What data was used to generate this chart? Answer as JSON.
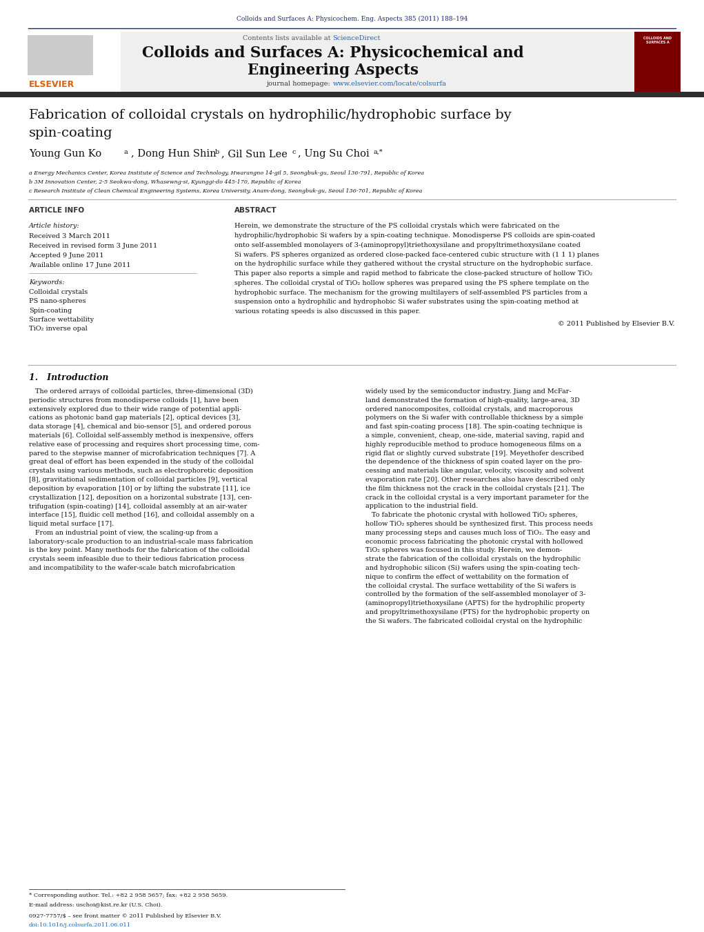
{
  "journal_ref": "Colloids and Surfaces A: Physicochem. Eng. Aspects 385 (2011) 188–194",
  "journal_name_line1": "Colloids and Surfaces A: Physicochemical and",
  "journal_name_line2": "Engineering Aspects",
  "contents_lists_plain": "Contents lists available at ",
  "contents_lists_link": "ScienceDirect",
  "journal_homepage_plain": "journal homepage: ",
  "journal_homepage_link": "www.elsevier.com/locate/colsurfa",
  "paper_title_line1": "Fabrication of colloidal crystals on hydrophilic/hydrophobic surface by",
  "paper_title_line2": "spin-coating",
  "affil_a": "a Energy Mechanics Center, Korea Institute of Science and Technology, Hwarangno 14-gil 5, Seongbuk-gu, Seoul 136-791, Republic of Korea",
  "affil_b": "b 3M Innovation Center, 2-5 Seokwu-dong, Whasewng-si, Kyunggi-do 445-170, Republic of Korea",
  "affil_c": "c Research Institute of Clean Chemical Engineering Systems, Korea University, Anam-dong, Seongbuk-gu, Seoul 136-701, Republic of Korea",
  "article_info_label": "ARTICLE INFO",
  "abstract_label": "ABSTRACT",
  "article_history_label": "Article history:",
  "received": "Received 3 March 2011",
  "received_revised": "Received in revised form 3 June 2011",
  "accepted": "Accepted 9 June 2011",
  "available": "Available online 17 June 2011",
  "keywords_label": "Keywords:",
  "keywords": [
    "Colloidal crystals",
    "PS nano-spheres",
    "Spin-coating",
    "Surface wettability",
    "TiO₂ inverse opal"
  ],
  "abstract_text": "Herein, we demonstrate the structure of the PS colloidal crystals which were fabricated on the hydrophilic/hydrophobic Si wafers by a spin-coating technique. Monodisperse PS colloids are spin-coated onto self-assembled monolayers of 3-(aminopropyl)triethoxysilane and propyltrimethoxysilane coated Si wafers. PS spheres organized as ordered close-packed face-centered cubic structure with (1 1 1) planes on the hydrophilic surface while they gathered without the crystal structure on the hydrophobic surface. This paper also reports a simple and rapid method to fabricate the close-packed structure of hollow TiO₂ spheres. The colloidal crystal of TiO₂ hollow spheres was prepared using the PS sphere template on the hydrophobic surface. The mechanism for the growing multilayers of self-assembled PS particles from a suspension onto a hydrophilic and hydrophobic Si wafer substrates using the spin-coating method at various rotating speeds is also discussed in this paper.",
  "copyright": "© 2011 Published by Elsevier B.V.",
  "intro_heading": "1.   Introduction",
  "intro_col1_lines": [
    "   The ordered arrays of colloidal particles, three-dimensional (3D)",
    "periodic structures from monodisperse colloids [1], have been",
    "extensively explored due to their wide range of potential appli-",
    "cations as photonic band gap materials [2], optical devices [3],",
    "data storage [4], chemical and bio-sensor [5], and ordered porous",
    "materials [6]. Colloidal self-assembly method is inexpensive, offers",
    "relative ease of processing and requires short processing time, com-",
    "pared to the stepwise manner of microfabrication techniques [7]. A",
    "great deal of effort has been expended in the study of the colloidal",
    "crystals using various methods, such as electrophoretic deposition",
    "[8], gravitational sedimentation of colloidal particles [9], vertical",
    "deposition by evaporation [10] or by lifting the substrate [11], ice",
    "crystallization [12], deposition on a horizontal substrate [13], cen-",
    "trifugation (spin-coating) [14], colloidal assembly at an air-water",
    "interface [15], fluidic cell method [16], and colloidal assembly on a",
    "liquid metal surface [17].",
    "   From an industrial point of view, the scaling-up from a",
    "laboratory-scale production to an industrial-scale mass fabrication",
    "is the key point. Many methods for the fabrication of the colloidal",
    "crystals seem infeasible due to their tedious fabrication process",
    "and incompatibility to the wafer-scale batch microfabrication"
  ],
  "intro_col2_lines": [
    "widely used by the semiconductor industry. Jiang and McFar-",
    "land demonstrated the formation of high-quality, large-area, 3D",
    "ordered nanocomposites, colloidal crystals, and macroporous",
    "polymers on the Si wafer with controllable thickness by a simple",
    "and fast spin-coating process [18]. The spin-coating technique is",
    "a simple, convenient, cheap, one-side, material saving, rapid and",
    "highly reproducible method to produce homogeneous films on a",
    "rigid flat or slightly curved substrate [19]. Meyethofer described",
    "the dependence of the thickness of spin coated layer on the pro-",
    "cessing and materials like angular, velocity, viscosity and solvent",
    "evaporation rate [20]. Other researches also have described only",
    "the film thickness not the crack in the colloidal crystals [21]. The",
    "crack in the colloidal crystal is a very important parameter for the",
    "application to the industrial field.",
    "   To fabricate the photonic crystal with hollowed TiO₂ spheres,",
    "hollow TiO₂ spheres should be synthesized first. This process needs",
    "many processing steps and causes much loss of TiO₂. The easy and",
    "economic process fabricating the photonic crystal with hollowed",
    "TiO₂ spheres was focused in this study. Herein, we demon-",
    "strate the fabrication of the colloidal crystals on the hydrophilic",
    "and hydrophobic silicon (Si) wafers using the spin-coating tech-",
    "nique to confirm the effect of wettability on the formation of",
    "the colloidal crystal. The surface wettability of the Si wafers is",
    "controlled by the formation of the self-assembled monolayer of 3-",
    "(aminopropyl)triethoxysilane (APTS) for the hydrophilic property",
    "and propyltrimethoxysilane (PTS) for the hydrophobic property on",
    "the Si wafers. The fabricated colloidal crystal on the hydrophilic"
  ],
  "footer_line1": "* Corresponding author. Tel.: +82 2 958 5657; fax: +82 2 958 5659.",
  "footer_line2": "E-mail address: uschoi@kist.re.kr (U.S. Choi).",
  "footer_line3": "0927-7757/$ – see front matter © 2011 Published by Elsevier B.V.",
  "footer_line4": "doi:10.1016/j.colsurfa.2011.06.011",
  "bg_color": "#ffffff",
  "dark_bar_color": "#2d2d2d",
  "blue_color": "#1a237e",
  "link_color": "#1565c0",
  "text_color": "#000000",
  "journal_ref_color": "#1a237e"
}
